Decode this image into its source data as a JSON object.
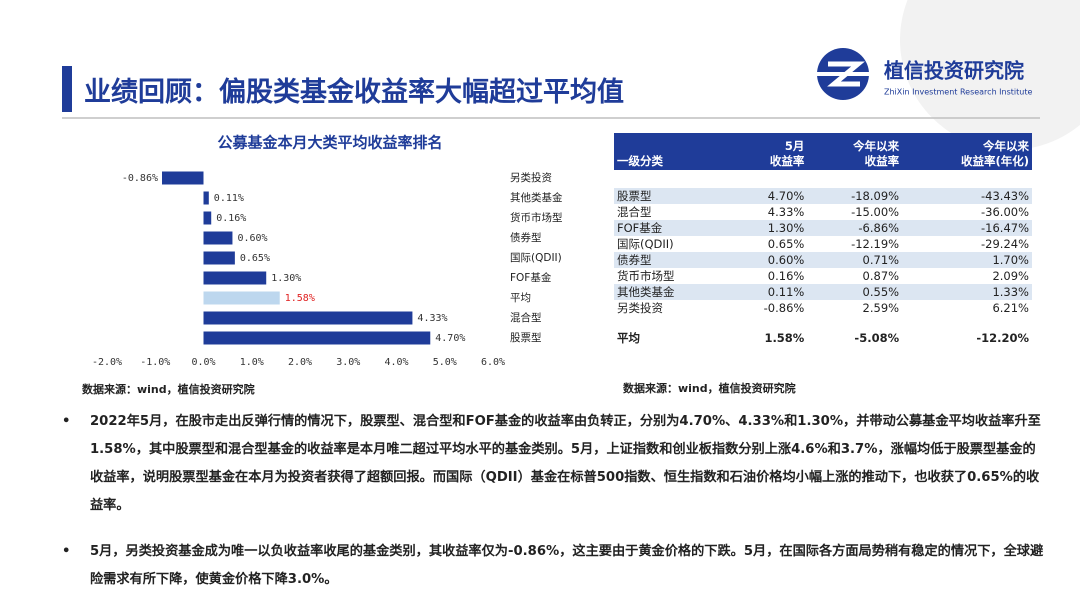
{
  "header": {
    "title": "业绩回顾：偏股类基金收益率大幅超过平均值",
    "logo_name": "植信投资研究院",
    "logo_subtitle": "ZhiXin Investment Research Institute"
  },
  "chart_data": {
    "type": "bar",
    "orientation": "horizontal",
    "title": "公募基金本月大类平均收益率排名",
    "categories": [
      "另类投资",
      "其他类基金",
      "货币市场型",
      "债券型",
      "国际(QDII)",
      "FOF基金",
      "平均",
      "混合型",
      "股票型"
    ],
    "values": [
      -0.86,
      0.11,
      0.16,
      0.6,
      0.65,
      1.3,
      1.58,
      4.33,
      4.7
    ],
    "value_labels": [
      "-0.86%",
      "0.11%",
      "0.16%",
      "0.60%",
      "0.65%",
      "1.30%",
      "1.58%",
      "4.33%",
      "4.70%"
    ],
    "colors": [
      "#1f3c99",
      "#1f3c99",
      "#1f3c99",
      "#1f3c99",
      "#1f3c99",
      "#1f3c99",
      "#bdd7ee",
      "#1f3c99",
      "#1f3c99"
    ],
    "label_colors": [
      "#333333",
      "#333333",
      "#333333",
      "#333333",
      "#333333",
      "#333333",
      "#e02020",
      "#333333",
      "#333333"
    ],
    "xlim": [
      -2,
      6
    ],
    "xticks": [
      {
        "value": -2,
        "label": "-2.0%"
      },
      {
        "value": -1,
        "label": "-1.0%"
      },
      {
        "value": 0,
        "label": "0.0%"
      },
      {
        "value": 1,
        "label": "1.0%"
      },
      {
        "value": 2,
        "label": "2.0%"
      },
      {
        "value": 3,
        "label": "3.0%"
      },
      {
        "value": 4,
        "label": "4.0%"
      },
      {
        "value": 5,
        "label": "5.0%"
      },
      {
        "value": 6,
        "label": "6.0%"
      }
    ],
    "source": "数据来源：wind，植信投资研究院"
  },
  "table": {
    "header": [
      [
        "一级分类"
      ],
      [
        "5月",
        "收益率"
      ],
      [
        "今年以来",
        "收益率"
      ],
      [
        "今年以来",
        "收益率(年化)"
      ]
    ],
    "rows": [
      [
        "股票型",
        "4.70%",
        "-18.09%",
        "-43.43%"
      ],
      [
        "混合型",
        "4.33%",
        "-15.00%",
        "-36.00%"
      ],
      [
        "FOF基金",
        "1.30%",
        "-6.86%",
        "-16.47%"
      ],
      [
        "国际(QDII)",
        "0.65%",
        "-12.19%",
        "-29.24%"
      ],
      [
        "债券型",
        "0.60%",
        "0.71%",
        "1.70%"
      ],
      [
        "货币市场型",
        "0.16%",
        "0.87%",
        "2.09%"
      ],
      [
        "其他类基金",
        "0.11%",
        "0.55%",
        "1.33%"
      ],
      [
        "另类投资",
        "-0.86%",
        "2.59%",
        "6.21%"
      ]
    ],
    "footer": [
      "平均",
      "1.58%",
      "-5.08%",
      "-12.20%"
    ],
    "source": "数据来源：wind，植信投资研究院"
  },
  "bullets": [
    "2022年5月，在股市走出反弹行情的情况下，股票型、混合型和FOF基金的收益率由负转正，分别为4.70%、4.33%和1.30%，并带动公募基金平均收益率升至1.58%，其中股票型和混合型基金的收益率是本月唯二超过平均水平的基金类别。5月，上证指数和创业板指数分别上涨4.6%和3.7%，涨幅均低于股票型基金的收益率，说明股票型基金在本月为投资者获得了超额回报。而国际（QDII）基金在标普500指数、恒生指数和石油价格均小幅上涨的推动下，也收获了0.65%的收益率。",
    "5月，另类投资基金成为唯一以负收益率收尾的基金类别，其收益率仅为-0.86%，这主要由于黄金价格的下跌。5月，在国际各方面局势稍有稳定的情况下，全球避险需求有所下降，使黄金价格下降3.0%。"
  ]
}
